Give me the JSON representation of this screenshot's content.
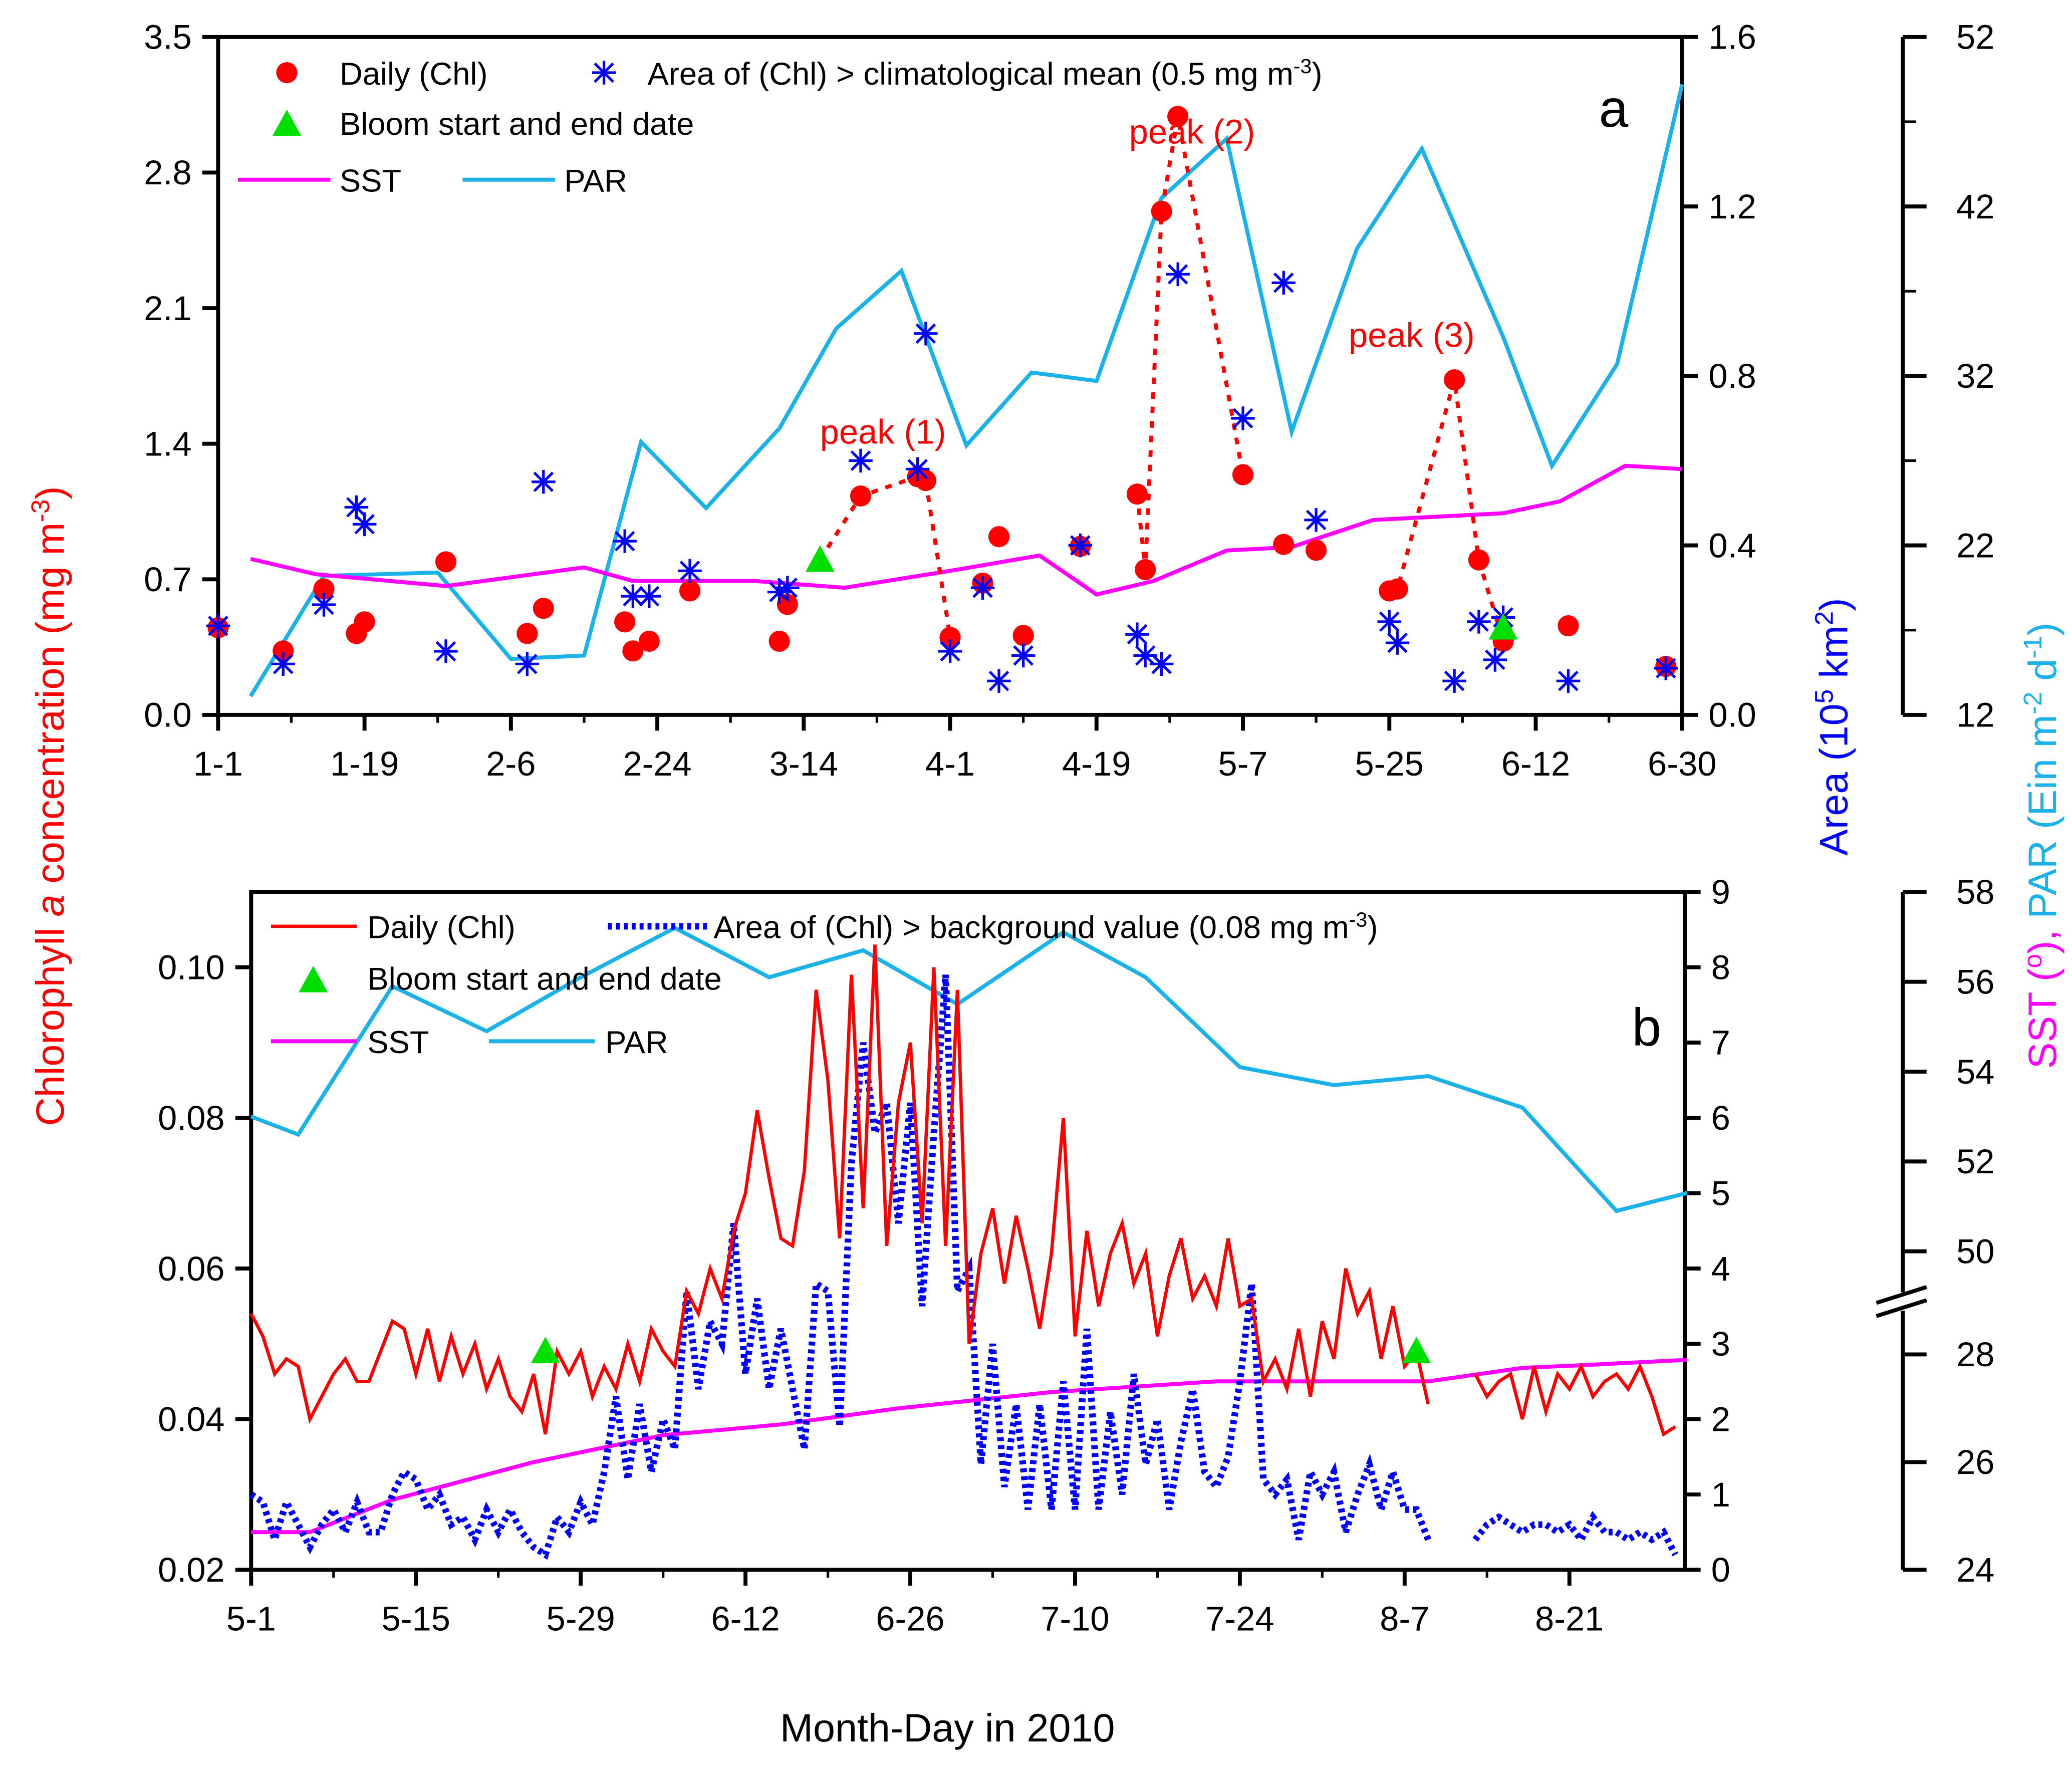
{
  "colors": {
    "chl": "#ff0000",
    "area": "#0000ff",
    "sst": "#ff00ff",
    "par": "#1ab2e8",
    "bloom": "#00e000",
    "axis": "#000000"
  },
  "shared": {
    "xlabel": "Month-Day in 2010",
    "left_title": [
      {
        "t": "Chlorophyll "
      },
      {
        "t": "a",
        "it": true
      },
      {
        "t": " concentration (mg m"
      },
      {
        "t": "-3",
        "sup": true
      },
      {
        "t": ")"
      }
    ],
    "area_title": [
      {
        "t": "Area (10"
      },
      {
        "t": "5",
        "sup": true
      },
      {
        "t": " km"
      },
      {
        "t": "2",
        "sup": true
      },
      {
        "t": ")"
      }
    ],
    "far_title_sst": [
      {
        "t": "SST ("
      },
      {
        "t": "o",
        "sup": true
      },
      {
        "t": "), "
      }
    ],
    "far_title_par": [
      {
        "t": "PAR (Ein m"
      },
      {
        "t": "-2",
        "sup": true
      },
      {
        "t": " d"
      },
      {
        "t": "-1",
        "sup": true
      },
      {
        "t": ")"
      }
    ]
  },
  "chart_data": [
    {
      "type": "line+scatter",
      "panel_label": "a",
      "x_ticks": [
        {
          "day": 0,
          "label": "1-1"
        },
        {
          "day": 18,
          "label": "1-19"
        },
        {
          "day": 36,
          "label": "2-6"
        },
        {
          "day": 54,
          "label": "2-24"
        },
        {
          "day": 72,
          "label": "3-14"
        },
        {
          "day": 90,
          "label": "4-1"
        },
        {
          "day": 108,
          "label": "4-19"
        },
        {
          "day": 126,
          "label": "5-7"
        },
        {
          "day": 144,
          "label": "5-25"
        },
        {
          "day": 162,
          "label": "6-12"
        },
        {
          "day": 180,
          "label": "6-30"
        }
      ],
      "xlim": [
        0,
        180
      ],
      "y_left": {
        "lim": [
          0,
          3.5
        ],
        "ticks": [
          "0.0",
          "0.7",
          "1.4",
          "2.1",
          "2.8",
          "3.5"
        ]
      },
      "y_area": {
        "lim": [
          0,
          1.6
        ],
        "ticks": [
          "0.0",
          "0.4",
          "0.8",
          "1.2",
          "1.6"
        ]
      },
      "y_far": {
        "lim": [
          12,
          52
        ],
        "ticks": [
          "12",
          "22",
          "32",
          "42",
          "52"
        ]
      },
      "legend": {
        "chl": "Daily (Chl)",
        "area": [
          {
            "t": "Area of (Chl) > climatological mean (0.5 mg m"
          },
          {
            "t": "-3",
            "sup": true
          },
          {
            "t": ")"
          }
        ],
        "bloom": "Bloom start and end date",
        "sst": "SST",
        "par": "PAR"
      },
      "chl_daily": [
        [
          0,
          0.45
        ],
        [
          8,
          0.33
        ],
        [
          13,
          0.65
        ],
        [
          17,
          0.42
        ],
        [
          18,
          0.48
        ],
        [
          28,
          0.79
        ],
        [
          38,
          0.42
        ],
        [
          40,
          0.55
        ],
        [
          50,
          0.48
        ],
        [
          51,
          0.33
        ],
        [
          53,
          0.38
        ],
        [
          58,
          0.64
        ],
        [
          69,
          0.38
        ],
        [
          70,
          0.57
        ],
        [
          79,
          1.13
        ],
        [
          86,
          1.23
        ],
        [
          87,
          1.21
        ],
        [
          90,
          0.4
        ],
        [
          94,
          0.68
        ],
        [
          96,
          0.92
        ],
        [
          99,
          0.41
        ],
        [
          106,
          0.87
        ],
        [
          113,
          1.14
        ],
        [
          114,
          0.75
        ],
        [
          116,
          2.6
        ],
        [
          118,
          3.09
        ],
        [
          126,
          1.24
        ],
        [
          131,
          0.88
        ],
        [
          135,
          0.85
        ],
        [
          144,
          0.64
        ],
        [
          145,
          0.65
        ],
        [
          152,
          1.73
        ],
        [
          155,
          0.8
        ],
        [
          158,
          0.38
        ],
        [
          166,
          0.46
        ],
        [
          178,
          0.25
        ]
      ],
      "area": [
        [
          0,
          0.21
        ],
        [
          8,
          0.12
        ],
        [
          13,
          0.26
        ],
        [
          17,
          0.49
        ],
        [
          18,
          0.45
        ],
        [
          28,
          0.15
        ],
        [
          38,
          0.12
        ],
        [
          40,
          0.55
        ],
        [
          50,
          0.41
        ],
        [
          51,
          0.28
        ],
        [
          53,
          0.28
        ],
        [
          58,
          0.34
        ],
        [
          69,
          0.29
        ],
        [
          70,
          0.3
        ],
        [
          79,
          0.6
        ],
        [
          86,
          0.58
        ],
        [
          87,
          0.9
        ],
        [
          90,
          0.15
        ],
        [
          94,
          0.3
        ],
        [
          96,
          0.08
        ],
        [
          99,
          0.14
        ],
        [
          106,
          0.4
        ],
        [
          113,
          0.19
        ],
        [
          114,
          0.14
        ],
        [
          116,
          0.12
        ],
        [
          118,
          1.04
        ],
        [
          126,
          0.7
        ],
        [
          131,
          1.02
        ],
        [
          135,
          0.46
        ],
        [
          144,
          0.22
        ],
        [
          145,
          0.17
        ],
        [
          152,
          0.08
        ],
        [
          155,
          0.22
        ],
        [
          157,
          0.13
        ],
        [
          158,
          0.23
        ],
        [
          166,
          0.08
        ],
        [
          178,
          0.11
        ]
      ],
      "bloom": [
        [
          74,
          0.8
        ],
        [
          158,
          0.45
        ]
      ],
      "peaks": [
        {
          "label": "peak (1)",
          "path": [
            [
              74,
              0.8
            ],
            [
              79,
              1.13
            ],
            [
              86,
              1.23
            ],
            [
              87,
              1.21
            ],
            [
              90,
              0.4
            ]
          ],
          "label_at": [
            74,
            1.4
          ]
        },
        {
          "label": "peak (2)",
          "path": [
            [
              113,
              1.14
            ],
            [
              114,
              0.75
            ],
            [
              116,
              2.6
            ],
            [
              118,
              3.09
            ],
            [
              126,
              1.24
            ]
          ],
          "label_at": [
            112,
            2.95
          ]
        },
        {
          "label": "peak (3)",
          "path": [
            [
              144,
              0.64
            ],
            [
              145,
              0.65
            ],
            [
              152,
              1.73
            ],
            [
              155,
              0.8
            ],
            [
              158,
              0.38
            ]
          ],
          "label_at": [
            139,
            1.9
          ]
        }
      ],
      "sst": [
        [
          4,
          21.2
        ],
        [
          12,
          20.3
        ],
        [
          28,
          19.6
        ],
        [
          45,
          20.7
        ],
        [
          51,
          19.9
        ],
        [
          66,
          19.9
        ],
        [
          77,
          19.5
        ],
        [
          90,
          20.5
        ],
        [
          101,
          21.4
        ],
        [
          108,
          19.1
        ],
        [
          115,
          19.9
        ],
        [
          124,
          21.7
        ],
        [
          132,
          21.9
        ],
        [
          142,
          23.5
        ],
        [
          154,
          23.8
        ],
        [
          158,
          23.9
        ],
        [
          165,
          24.6
        ],
        [
          173,
          26.7
        ],
        [
          180,
          26.5
        ]
      ],
      "par": [
        [
          4,
          13.1
        ],
        [
          13,
          20.2
        ],
        [
          27,
          20.4
        ],
        [
          36,
          15.3
        ],
        [
          45,
          15.5
        ],
        [
          52,
          28.1
        ],
        [
          60,
          24.2
        ],
        [
          69,
          28.9
        ],
        [
          76,
          34.8
        ],
        [
          84,
          38.2
        ],
        [
          92,
          27.9
        ],
        [
          100,
          32.2
        ],
        [
          108,
          31.7
        ],
        [
          116,
          42.5
        ],
        [
          124,
          46.0
        ],
        [
          132,
          28.7
        ],
        [
          140,
          39.5
        ],
        [
          148,
          45.4
        ],
        [
          158,
          34.3
        ],
        [
          164,
          26.7
        ],
        [
          172,
          32.7
        ],
        [
          180,
          49.2
        ]
      ]
    },
    {
      "type": "line",
      "panel_label": "b",
      "x_ticks": [
        {
          "day": 0,
          "label": "5-1"
        },
        {
          "day": 14,
          "label": "5-15"
        },
        {
          "day": 28,
          "label": "5-29"
        },
        {
          "day": 42,
          "label": "6-12"
        },
        {
          "day": 56,
          "label": "6-26"
        },
        {
          "day": 70,
          "label": "7-10"
        },
        {
          "day": 84,
          "label": "7-24"
        },
        {
          "day": 98,
          "label": "8-7"
        },
        {
          "day": 112,
          "label": "8-21"
        }
      ],
      "xlim": [
        0,
        121.8
      ],
      "y_left": {
        "lim": [
          0.02,
          0.11
        ],
        "ticks": [
          "0.02",
          "0.04",
          "0.06",
          "0.08",
          "0.10"
        ]
      },
      "y_area": {
        "lim": [
          0,
          9
        ],
        "ticks": [
          "0",
          "1",
          "2",
          "3",
          "4",
          "5",
          "6",
          "7",
          "8",
          "9"
        ]
      },
      "y_far_par": {
        "lim": [
          50,
          58
        ],
        "ticks": [
          "50",
          "52",
          "54",
          "56",
          "58"
        ]
      },
      "y_far_sst": {
        "lim": [
          24,
          28
        ],
        "ticks": [
          "24",
          "26",
          "28"
        ]
      },
      "legend": {
        "chl": "Daily (Chl)",
        "area": [
          {
            "t": "Area of (Chl) > background value (0.08 mg m"
          },
          {
            "t": "-3",
            "sup": true
          },
          {
            "t": ")"
          }
        ],
        "bloom": "Bloom start and end date",
        "sst": "SST",
        "par": "PAR"
      },
      "chl_daily": [
        0.054,
        0.051,
        0.046,
        0.048,
        0.047,
        0.04,
        0.043,
        0.046,
        0.048,
        0.045,
        0.045,
        0.049,
        0.053,
        0.052,
        0.046,
        0.052,
        0.045,
        0.051,
        0.046,
        0.05,
        0.044,
        0.048,
        0.043,
        0.041,
        0.046,
        0.038,
        0.049,
        0.046,
        0.049,
        0.043,
        0.047,
        0.044,
        0.05,
        0.045,
        0.052,
        0.049,
        0.047,
        0.057,
        0.054,
        0.06,
        0.056,
        0.065,
        0.07,
        0.081,
        0.072,
        0.064,
        0.063,
        0.073,
        0.097,
        0.085,
        0.064,
        0.099,
        0.068,
        0.103,
        0.063,
        0.082,
        0.09,
        0.066,
        0.1,
        0.063,
        0.097,
        0.05,
        0.062,
        0.068,
        0.058,
        0.067,
        0.06,
        0.052,
        0.062,
        0.08,
        0.051,
        0.065,
        0.055,
        0.062,
        0.066,
        0.058,
        0.062,
        0.051,
        0.059,
        0.064,
        0.056,
        0.059,
        0.055,
        0.064,
        0.055,
        0.056,
        0.045,
        0.048,
        0.044,
        0.052,
        0.043,
        0.053,
        0.048,
        0.06,
        0.054,
        0.057,
        0.048,
        0.055,
        0.047,
        0.049,
        0.042,
        null,
        null,
        null,
        0.046,
        0.043,
        0.045,
        0.046,
        0.04,
        0.047,
        0.041,
        0.046,
        0.044,
        0.047,
        0.043,
        0.045,
        0.046,
        0.044,
        0.047,
        0.043,
        0.038,
        0.039
      ],
      "area": [
        1.0,
        0.9,
        0.4,
        0.9,
        0.6,
        0.3,
        0.6,
        0.8,
        0.5,
        0.9,
        0.5,
        0.5,
        1.0,
        1.3,
        1.2,
        0.8,
        1.0,
        0.6,
        0.7,
        0.4,
        0.8,
        0.5,
        0.8,
        0.5,
        0.3,
        0.2,
        0.7,
        0.5,
        0.9,
        0.6,
        1.3,
        2.3,
        1.2,
        2.2,
        1.3,
        2.0,
        1.6,
        3.7,
        2.4,
        3.3,
        3.0,
        4.6,
        2.6,
        3.6,
        2.4,
        3.2,
        2.4,
        1.6,
        3.8,
        3.7,
        1.9,
        5.4,
        7.0,
        5.8,
        6.2,
        4.6,
        6.2,
        3.5,
        5.8,
        7.9,
        3.7,
        4.0,
        1.4,
        3.0,
        1.1,
        2.2,
        0.8,
        2.2,
        0.8,
        2.5,
        0.8,
        3.2,
        0.8,
        2.1,
        1.0,
        2.6,
        1.4,
        2.0,
        0.8,
        1.7,
        2.4,
        1.3,
        1.1,
        1.5,
        2.5,
        3.8,
        1.2,
        1.0,
        1.2,
        0.4,
        1.3,
        1.0,
        1.3,
        0.5,
        1.0,
        1.4,
        0.8,
        1.3,
        0.8,
        0.8,
        0.4,
        null,
        null,
        null,
        0.4,
        0.6,
        0.7,
        0.6,
        0.5,
        0.6,
        0.6,
        0.5,
        0.6,
        0.4,
        0.7,
        0.5,
        0.5,
        0.4,
        0.5,
        0.4,
        0.5,
        0.2
      ],
      "bloom": [
        [
          25,
          0.049
        ],
        [
          99,
          0.049
        ]
      ],
      "sst": [
        [
          0,
          24.7
        ],
        [
          5,
          24.7
        ],
        [
          12,
          25.3
        ],
        [
          24,
          26.0
        ],
        [
          35,
          26.5
        ],
        [
          45,
          26.7
        ],
        [
          55,
          27.0
        ],
        [
          68,
          27.3
        ],
        [
          82,
          27.5
        ],
        [
          100,
          27.5
        ],
        [
          108,
          27.75
        ],
        [
          113,
          27.8
        ],
        [
          122,
          27.9
        ]
      ],
      "par": [
        [
          0,
          53.0
        ],
        [
          4,
          52.6
        ],
        [
          12,
          55.9
        ],
        [
          20,
          54.9
        ],
        [
          28,
          56.1
        ],
        [
          36,
          57.2
        ],
        [
          44,
          56.1
        ],
        [
          52,
          56.7
        ],
        [
          60,
          55.5
        ],
        [
          69,
          57.1
        ],
        [
          76,
          56.1
        ],
        [
          84,
          54.1
        ],
        [
          92,
          53.7
        ],
        [
          100,
          53.9
        ],
        [
          108,
          53.2
        ],
        [
          116,
          50.9
        ],
        [
          122,
          51.3
        ]
      ]
    }
  ]
}
